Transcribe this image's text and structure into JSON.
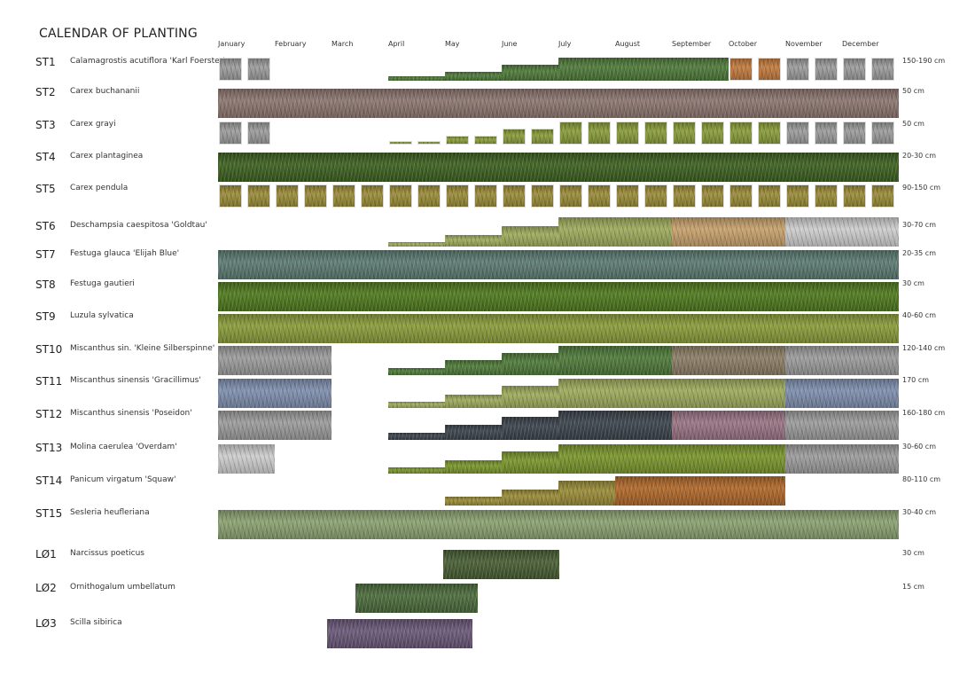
{
  "title": "CALENDAR OF PLANTING",
  "months": [
    "January",
    "February",
    "March",
    "April",
    "May",
    "June",
    "July",
    "August",
    "September",
    "October",
    "November",
    "December"
  ],
  "colors": {
    "winter_gray": "#9c9c9c",
    "light_gray": "#cdcdcd",
    "autumn_orange": "#c27a3e",
    "green": "#4f7a3a",
    "mauve": "#8c7670",
    "dark_green": "#3d6120",
    "yellow_green": "#9a8c38",
    "pale_green": "#9eab5c",
    "tan": "#c7a16c",
    "blue_green": "#5c7b72",
    "moss": "#4f7a1e",
    "olive": "#8a9c3a",
    "pink_green": "#8c7e66",
    "frost_blue": "#7f8fae",
    "slate": "#3c444c",
    "pink": "#9a7484",
    "lime": "#7a962c",
    "rust": "#b0682a",
    "sage": "#8ba272",
    "narcissus": "#485e34",
    "ornithogalum": "#4c6c3c",
    "scilla": "#6a5878"
  },
  "rows": [
    {
      "code": "ST1",
      "name": "Calamagrostis acutiflora 'Karl Foerster'",
      "size": "150-190 cm",
      "segments": [
        {
          "from": 0,
          "to": 1,
          "kind": "tiles",
          "color": "winter_gray",
          "level": 1
        },
        {
          "from": 3,
          "to": 4,
          "kind": "band",
          "color": "green",
          "level": 0.2
        },
        {
          "from": 4,
          "to": 5,
          "kind": "band",
          "color": "green",
          "level": 0.4
        },
        {
          "from": 5,
          "to": 6,
          "kind": "band",
          "color": "green",
          "level": 0.7
        },
        {
          "from": 6,
          "to": 9,
          "kind": "band",
          "color": "green",
          "level": 1
        },
        {
          "from": 9,
          "to": 10,
          "kind": "tiles",
          "color": "autumn_orange",
          "level": 1
        },
        {
          "from": 10,
          "to": 12,
          "kind": "tiles",
          "color": "winter_gray",
          "level": 1
        }
      ]
    },
    {
      "code": "ST2",
      "name": "Carex buchananii",
      "size": "50 cm",
      "segments": [
        {
          "from": 0,
          "to": 12,
          "kind": "band",
          "color": "mauve",
          "level": 1
        }
      ]
    },
    {
      "code": "ST3",
      "name": "Carex grayi",
      "size": "50 cm",
      "segments": [
        {
          "from": 0,
          "to": 1,
          "kind": "tiles",
          "color": "winter_gray",
          "level": 1
        },
        {
          "from": 3,
          "to": 4,
          "kind": "tiles",
          "color": "olive",
          "level": 0.15
        },
        {
          "from": 4,
          "to": 5,
          "kind": "tiles",
          "color": "olive",
          "level": 0.4
        },
        {
          "from": 5,
          "to": 6,
          "kind": "tiles",
          "color": "olive",
          "level": 0.7
        },
        {
          "from": 6,
          "to": 10,
          "kind": "tiles",
          "color": "olive",
          "level": 1
        },
        {
          "from": 10,
          "to": 12,
          "kind": "tiles",
          "color": "winter_gray",
          "level": 1
        }
      ]
    },
    {
      "code": "ST4",
      "name": "Carex plantaginea",
      "size": "20-30 cm",
      "segments": [
        {
          "from": 0,
          "to": 12,
          "kind": "band",
          "color": "dark_green",
          "level": 1
        }
      ]
    },
    {
      "code": "ST5",
      "name": "Carex pendula",
      "size": "90-150 cm",
      "segments": [
        {
          "from": 0,
          "to": 12,
          "kind": "tiles",
          "color": "yellow_green",
          "level": 1
        }
      ]
    },
    {
      "code": "ST6",
      "name": "Deschampsia caespitosa 'Goldtau'",
      "size": "30-70 cm",
      "segments": [
        {
          "from": 3,
          "to": 4,
          "kind": "band",
          "color": "pale_green",
          "level": 0.15
        },
        {
          "from": 4,
          "to": 5,
          "kind": "band",
          "color": "pale_green",
          "level": 0.4
        },
        {
          "from": 5,
          "to": 6,
          "kind": "band",
          "color": "pale_green",
          "level": 0.7
        },
        {
          "from": 6,
          "to": 8,
          "kind": "band",
          "color": "pale_green",
          "level": 1
        },
        {
          "from": 8,
          "to": 10,
          "kind": "band",
          "color": "tan",
          "level": 1
        },
        {
          "from": 10,
          "to": 12,
          "kind": "band",
          "color": "light_gray",
          "level": 1
        }
      ]
    },
    {
      "code": "ST7",
      "name": "Festuga glauca 'Elijah Blue'",
      "size": "20-35 cm",
      "segments": [
        {
          "from": 0,
          "to": 12,
          "kind": "band",
          "color": "blue_green",
          "level": 1
        }
      ]
    },
    {
      "code": "ST8",
      "name": "Festuga gautieri",
      "size": "30 cm",
      "segments": [
        {
          "from": 0,
          "to": 12,
          "kind": "band",
          "color": "moss",
          "level": 1
        }
      ]
    },
    {
      "code": "ST9",
      "name": "Luzula sylvatica",
      "size": "40-60 cm",
      "segments": [
        {
          "from": 0,
          "to": 12,
          "kind": "band",
          "color": "olive",
          "level": 1
        }
      ]
    },
    {
      "code": "ST10",
      "name": "Miscanthus sin. 'Kleine Silberspinne'",
      "size": "120-140 cm",
      "segments": [
        {
          "from": 0,
          "to": 2,
          "kind": "band",
          "color": "winter_gray",
          "level": 1
        },
        {
          "from": 3,
          "to": 4,
          "kind": "band",
          "color": "green",
          "level": 0.25
        },
        {
          "from": 4,
          "to": 5,
          "kind": "band",
          "color": "green",
          "level": 0.5
        },
        {
          "from": 5,
          "to": 6,
          "kind": "band",
          "color": "green",
          "level": 0.75
        },
        {
          "from": 6,
          "to": 8,
          "kind": "band",
          "color": "green",
          "level": 1
        },
        {
          "from": 8,
          "to": 10,
          "kind": "band",
          "color": "pink_green",
          "level": 1
        },
        {
          "from": 10,
          "to": 12,
          "kind": "band",
          "color": "winter_gray",
          "level": 1
        }
      ]
    },
    {
      "code": "ST11",
      "name": "Miscanthus sinensis 'Gracillimus'",
      "size": "170 cm",
      "segments": [
        {
          "from": 0,
          "to": 2,
          "kind": "band",
          "color": "frost_blue",
          "level": 1
        },
        {
          "from": 3,
          "to": 4,
          "kind": "band",
          "color": "pale_green",
          "level": 0.2
        },
        {
          "from": 4,
          "to": 5,
          "kind": "band",
          "color": "pale_green",
          "level": 0.45
        },
        {
          "from": 5,
          "to": 6,
          "kind": "band",
          "color": "pale_green",
          "level": 0.75
        },
        {
          "from": 6,
          "to": 10,
          "kind": "band",
          "color": "pale_green",
          "level": 1
        },
        {
          "from": 10,
          "to": 12,
          "kind": "band",
          "color": "frost_blue",
          "level": 1
        }
      ]
    },
    {
      "code": "ST12",
      "name": "Miscanthus sinensis 'Poseidon'",
      "size": "160-180 cm",
      "segments": [
        {
          "from": 0,
          "to": 2,
          "kind": "band",
          "color": "winter_gray",
          "level": 1
        },
        {
          "from": 3,
          "to": 4,
          "kind": "band",
          "color": "slate",
          "level": 0.25
        },
        {
          "from": 4,
          "to": 5,
          "kind": "band",
          "color": "slate",
          "level": 0.5
        },
        {
          "from": 5,
          "to": 6,
          "kind": "band",
          "color": "slate",
          "level": 0.8
        },
        {
          "from": 6,
          "to": 8,
          "kind": "band",
          "color": "slate",
          "level": 1
        },
        {
          "from": 8,
          "to": 10,
          "kind": "band",
          "color": "pink",
          "level": 1
        },
        {
          "from": 10,
          "to": 12,
          "kind": "band",
          "color": "winter_gray",
          "level": 1
        }
      ]
    },
    {
      "code": "ST13",
      "name": "Molina caerulea 'Overdam'",
      "size": "30-60 cm",
      "segments": [
        {
          "from": 0,
          "to": 1,
          "kind": "band",
          "color": "light_gray",
          "level": 1
        },
        {
          "from": 3,
          "to": 4,
          "kind": "band",
          "color": "lime",
          "level": 0.2
        },
        {
          "from": 4,
          "to": 5,
          "kind": "band",
          "color": "lime",
          "level": 0.45
        },
        {
          "from": 5,
          "to": 6,
          "kind": "band",
          "color": "lime",
          "level": 0.75
        },
        {
          "from": 6,
          "to": 10,
          "kind": "band",
          "color": "lime",
          "level": 1
        },
        {
          "from": 10,
          "to": 12,
          "kind": "band",
          "color": "winter_gray",
          "level": 1
        }
      ]
    },
    {
      "code": "ST14",
      "name": "Panicum virgatum 'Squaw'",
      "size": "80-110 cm",
      "segments": [
        {
          "from": 4,
          "to": 5,
          "kind": "band",
          "color": "yellow_green",
          "level": 0.3
        },
        {
          "from": 5,
          "to": 6,
          "kind": "band",
          "color": "yellow_green",
          "level": 0.55
        },
        {
          "from": 6,
          "to": 7,
          "kind": "band",
          "color": "yellow_green",
          "level": 0.85
        },
        {
          "from": 7,
          "to": 10,
          "kind": "band",
          "color": "rust",
          "level": 1
        }
      ]
    },
    {
      "code": "ST15",
      "name": "Sesleria heufleriana",
      "size": "30-40 cm",
      "segments": [
        {
          "from": 0,
          "to": 12,
          "kind": "band",
          "color": "sage",
          "level": 1
        }
      ]
    },
    {
      "code": "LØ1",
      "name": "Narcissus poeticus",
      "size": "30 cm",
      "segments": [
        {
          "from": 3.97,
          "to": 6.02,
          "kind": "band",
          "color": "narcissus",
          "level": 1
        }
      ]
    },
    {
      "code": "LØ2",
      "name": "Ornithogalum umbellatum",
      "size": "15 cm",
      "segments": [
        {
          "from": 2.42,
          "to": 4.58,
          "kind": "band",
          "color": "ornithogalum",
          "level": 1
        }
      ]
    },
    {
      "code": "LØ3",
      "name": "Scilla sibirica",
      "size": "",
      "segments": [
        {
          "from": 1.92,
          "to": 4.48,
          "kind": "band",
          "color": "scilla",
          "level": 1
        }
      ]
    }
  ]
}
